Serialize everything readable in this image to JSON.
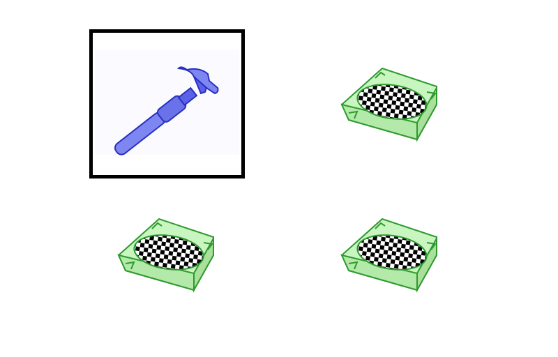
{
  "grid": {
    "cells": [
      {
        "id": "top-left",
        "icon": "hammer-icon",
        "selected": true,
        "color": "#5a63e6"
      },
      {
        "id": "top-right",
        "icon": "ashtray-icon",
        "selected": false,
        "color": "#3fa83f"
      },
      {
        "id": "bottom-left",
        "icon": "ashtray-icon",
        "selected": false,
        "color": "#3fa83f"
      },
      {
        "id": "bottom-right",
        "icon": "ashtray-icon",
        "selected": false,
        "color": "#3fa83f"
      }
    ]
  },
  "colors": {
    "frame": "#000000",
    "hammer_fill": "#7e86f2",
    "hammer_stroke": "#2a2fc0",
    "ashtray_fill": "#c8f5c0",
    "ashtray_stroke": "#2e9a2e"
  }
}
